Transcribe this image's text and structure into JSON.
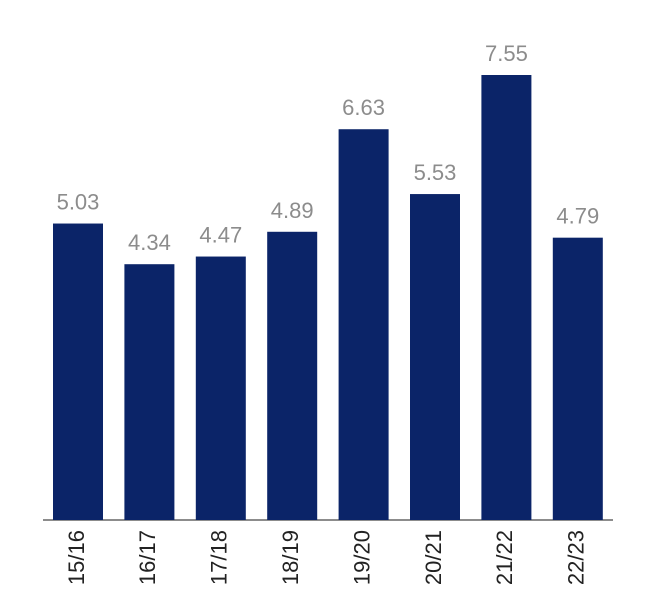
{
  "chart_data": {
    "type": "bar",
    "categories": [
      "15/16",
      "16/17",
      "17/18",
      "18/19",
      "19/20",
      "20/21",
      "21/22",
      "22/23"
    ],
    "values": [
      5.03,
      4.34,
      4.47,
      4.89,
      6.63,
      5.53,
      7.55,
      4.79
    ],
    "color": "#0b2468"
  }
}
